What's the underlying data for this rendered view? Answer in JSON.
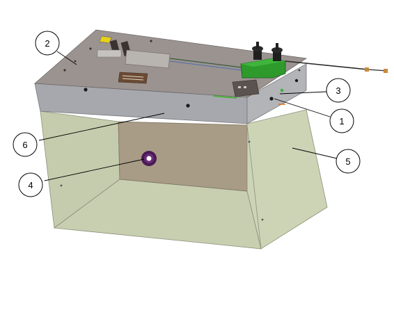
{
  "figure": {
    "callouts": [
      {
        "id": "1",
        "label": "1"
      },
      {
        "id": "2",
        "label": "2"
      },
      {
        "id": "3",
        "label": "3"
      },
      {
        "id": "4",
        "label": "4"
      },
      {
        "id": "5",
        "label": "5"
      },
      {
        "id": "6",
        "label": "6"
      }
    ],
    "colors": {
      "top_plate": "#9a9390",
      "top_plate_side": "#8c8684",
      "side_band": "#a7a8ad",
      "enclosure": "#c9d0b2",
      "enclosure_shade": "#b9c1a2",
      "back_panel": "#a89c86",
      "green_box": "#2e9a2c",
      "port_ring": "#4a1a55"
    }
  }
}
